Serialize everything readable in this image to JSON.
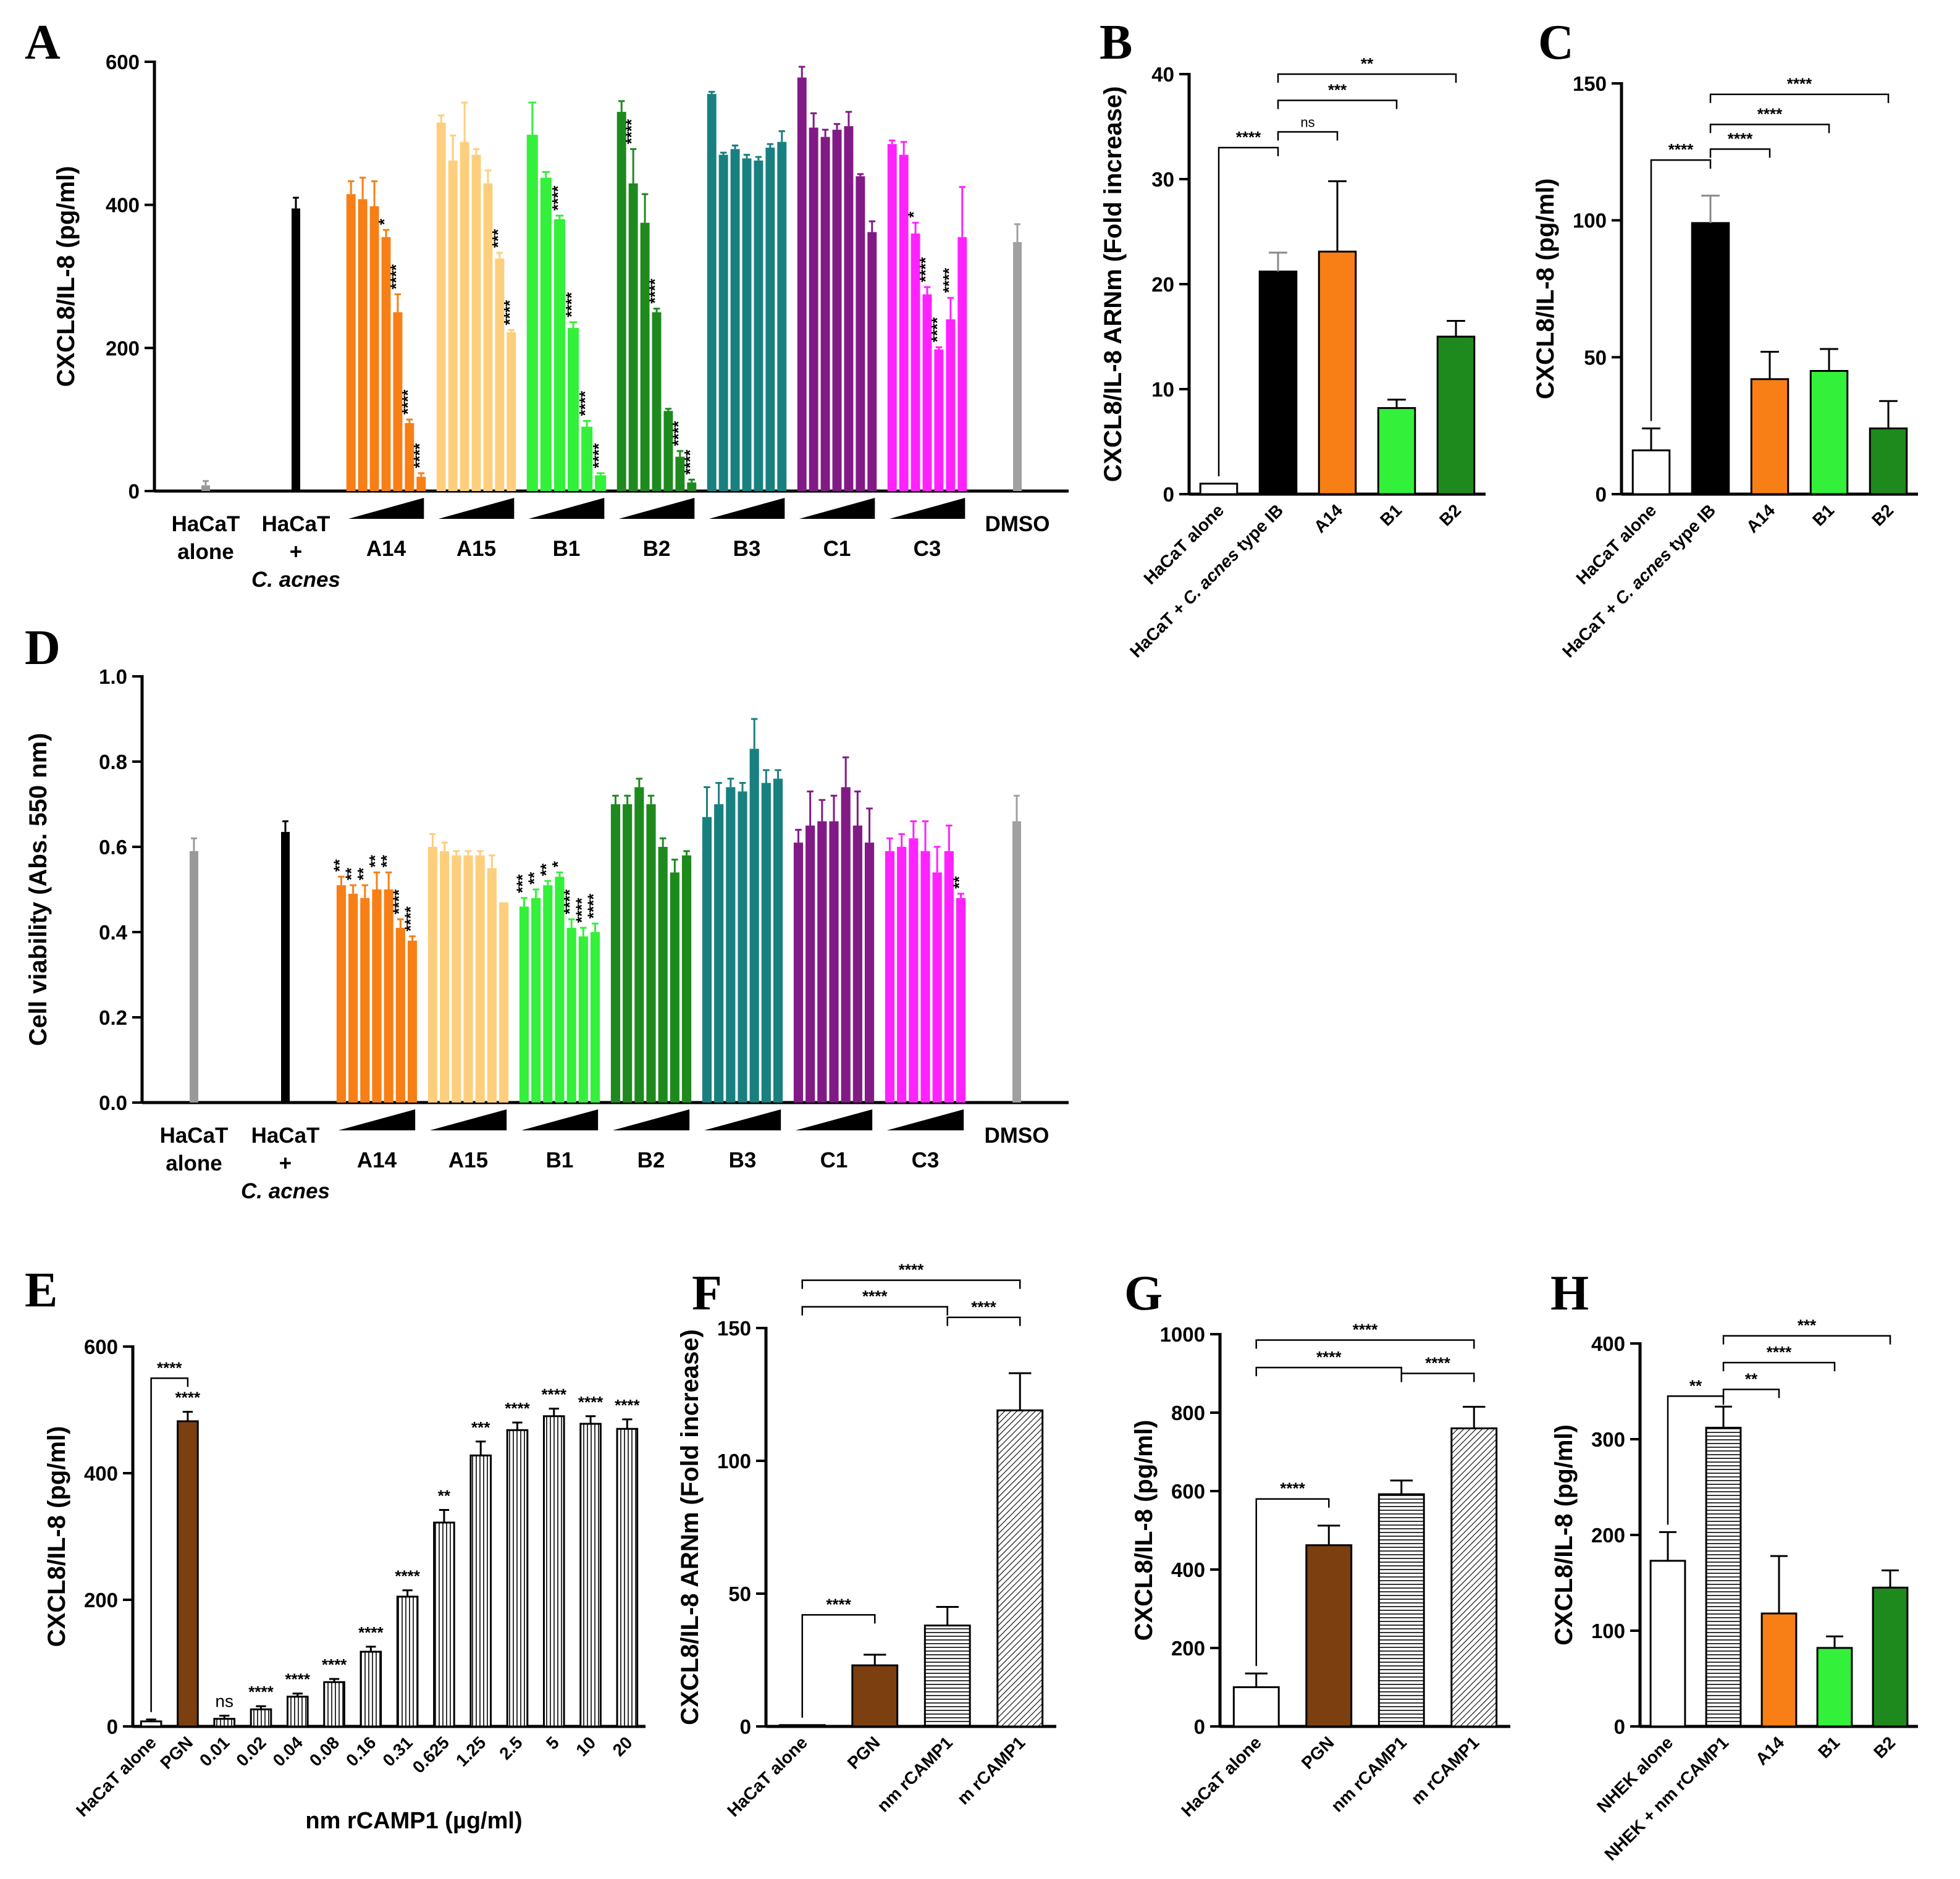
{
  "panels": [
    {
      "id": "A",
      "label": "A",
      "type": "bar",
      "box": [
        250,
        100,
        1730,
        800
      ],
      "ylabel": "CXCL8/IL-8 (pg/ml)",
      "ylim": [
        0,
        600
      ],
      "yticks": [
        0,
        200,
        400,
        600
      ],
      "groups": [
        {
          "label": "HaCaT\nalone",
          "color": "#999999",
          "values": [
            8
          ],
          "err": [
            6
          ]
        },
        {
          "label": "HaCaT\n+\nC. acnes",
          "italic_last": true,
          "color": "#000000",
          "values": [
            395
          ],
          "err": [
            15
          ]
        },
        {
          "label": "A14",
          "color": "#f77f16",
          "wedge": true,
          "values": [
            415,
            408,
            398,
            355,
            250,
            95,
            20
          ],
          "err": [
            18,
            30,
            35,
            10,
            25,
            5,
            5
          ],
          "stars": [
            "",
            "",
            "",
            "*",
            "****",
            "****",
            "****"
          ]
        },
        {
          "label": "A15",
          "color": "#fdcf7d",
          "wedge": true,
          "values": [
            515,
            462,
            488,
            470,
            430,
            325,
            222
          ],
          "err": [
            10,
            35,
            55,
            8,
            18,
            8,
            3
          ],
          "stars": [
            "",
            "",
            "",
            "",
            "",
            "***",
            "****"
          ]
        },
        {
          "label": "B1",
          "color": "#33f03a",
          "wedge": true,
          "values": [
            498,
            438,
            380,
            228,
            90,
            22
          ],
          "err": [
            45,
            8,
            5,
            8,
            8,
            3
          ],
          "stars": [
            "",
            "",
            "****",
            "****",
            "****",
            "****"
          ]
        },
        {
          "label": "B2",
          "color": "#1e8a1e",
          "wedge": true,
          "values": [
            530,
            430,
            375,
            250,
            112,
            48,
            12
          ],
          "err": [
            15,
            48,
            40,
            5,
            3,
            8,
            4
          ],
          "stars": [
            "",
            "****",
            "",
            "****",
            "",
            "****",
            "****"
          ]
        },
        {
          "label": "B3",
          "color": "#198080",
          "wedge": true,
          "values": [
            555,
            470,
            478,
            465,
            462,
            480,
            488
          ],
          "err": [
            3,
            3,
            5,
            5,
            5,
            5,
            15
          ]
        },
        {
          "label": "C1",
          "color": "#821a86",
          "wedge": true,
          "values": [
            578,
            508,
            495,
            505,
            510,
            440,
            362
          ],
          "err": [
            15,
            20,
            10,
            8,
            20,
            3,
            15
          ]
        },
        {
          "label": "C3",
          "color": "#ff22ff",
          "wedge": true,
          "values": [
            485,
            470,
            360,
            275,
            198,
            240,
            355
          ],
          "err": [
            5,
            18,
            15,
            10,
            3,
            30,
            70
          ],
          "stars": [
            "",
            "",
            "*",
            "****",
            "****",
            "****",
            ""
          ]
        },
        {
          "label": "DMSO",
          "color": "#a0a0a0",
          "values": [
            348
          ],
          "err": [
            25
          ]
        }
      ]
    },
    {
      "id": "B",
      "label": "B",
      "type": "bar",
      "box": [
        1925,
        120,
        2405,
        800
      ],
      "ylabel": "CXCL8/IL-8 ARNm (Fold increase)",
      "ylim": [
        0,
        40
      ],
      "yticks": [
        0,
        10,
        20,
        30,
        40
      ],
      "bars": [
        {
          "label": "HaCaT alone",
          "color": "#ffffff",
          "value": 1,
          "err": 0
        },
        {
          "label": "HaCaT + C. acnes type IB",
          "color": "#000000",
          "value": 21.2,
          "err": 1.8
        },
        {
          "label": "A14",
          "color": "#f77f16",
          "value": 23.1,
          "err": 6.7
        },
        {
          "label": "B1",
          "color": "#33f03a",
          "value": 8.2,
          "err": 0.8
        },
        {
          "label": "B2",
          "color": "#1e8a1e",
          "value": 15,
          "err": 1.5
        }
      ],
      "brackets": [
        {
          "from": 0,
          "to": 1,
          "text": "****",
          "y": 33
        },
        {
          "from": 1,
          "to": 2,
          "text": "ns",
          "y": 34.5
        },
        {
          "from": 1,
          "to": 3,
          "text": "***",
          "y": 37.5
        },
        {
          "from": 1,
          "to": 4,
          "text": "**",
          "y": 40
        }
      ]
    },
    {
      "id": "C",
      "label": "C",
      "type": "bar",
      "box": [
        2625,
        135,
        3105,
        800
      ],
      "ylabel": "CXCL8/IL-8 (pg/ml)",
      "ylim": [
        0,
        150
      ],
      "yticks": [
        0,
        50,
        100,
        150
      ],
      "bars": [
        {
          "label": "HaCaT alone",
          "color": "#ffffff",
          "value": 16,
          "err": 8
        },
        {
          "label": "HaCaT + C. acnes type IB",
          "color": "#000000",
          "value": 99,
          "err": 10
        },
        {
          "label": "A14",
          "color": "#f77f16",
          "value": 42,
          "err": 10
        },
        {
          "label": "B1",
          "color": "#33f03a",
          "value": 45,
          "err": 8
        },
        {
          "label": "B2",
          "color": "#1e8a1e",
          "value": 24,
          "err": 10
        }
      ],
      "brackets": [
        {
          "from": 0,
          "to": 1,
          "text": "****",
          "y": 122
        },
        {
          "from": 1,
          "to": 2,
          "text": "****",
          "y": 126
        },
        {
          "from": 1,
          "to": 3,
          "text": "****",
          "y": 135
        },
        {
          "from": 1,
          "to": 4,
          "text": "****",
          "y": 146
        }
      ]
    },
    {
      "id": "D",
      "label": "D",
      "type": "bar",
      "box": [
        230,
        1095,
        1730,
        1785
      ],
      "ylabel": "Cell viability (Abs. 550 nm)",
      "ylim": [
        0,
        1.0
      ],
      "yticks": [
        0.0,
        0.2,
        0.4,
        0.6,
        0.8,
        1.0
      ],
      "ytick_fmt": 1,
      "groups": [
        {
          "label": "HaCaT\nalone",
          "color": "#999999",
          "values": [
            0.59
          ],
          "err": [
            0.03
          ]
        },
        {
          "label": "HaCaT\n+\nC. acnes",
          "italic_last": true,
          "color": "#000000",
          "values": [
            0.635
          ],
          "err": [
            0.025
          ]
        },
        {
          "label": "A14",
          "color": "#f77f16",
          "wedge": true,
          "values": [
            0.51,
            0.49,
            0.48,
            0.5,
            0.5,
            0.41,
            0.38
          ],
          "err": [
            0.02,
            0.02,
            0.03,
            0.04,
            0.04,
            0.02,
            0.01
          ],
          "stars": [
            "**",
            "**",
            "**",
            "**",
            "**",
            "****",
            "****"
          ]
        },
        {
          "label": "A15",
          "color": "#fdcf7d",
          "wedge": true,
          "values": [
            0.6,
            0.59,
            0.58,
            0.58,
            0.58,
            0.55,
            0.47
          ],
          "err": [
            0.03,
            0.02,
            0.01,
            0.01,
            0.01,
            0.03,
            0.0
          ]
        },
        {
          "label": "B1",
          "color": "#33f03a",
          "wedge": true,
          "values": [
            0.46,
            0.48,
            0.51,
            0.53,
            0.41,
            0.39,
            0.4
          ],
          "err": [
            0.02,
            0.02,
            0.01,
            0.01,
            0.02,
            0.02,
            0.02
          ],
          "stars": [
            "***",
            "**",
            "**",
            "*",
            "****",
            "****",
            "****"
          ]
        },
        {
          "label": "B2",
          "color": "#1e8a1e",
          "wedge": true,
          "values": [
            0.7,
            0.7,
            0.74,
            0.7,
            0.6,
            0.54,
            0.58
          ],
          "err": [
            0.02,
            0.02,
            0.02,
            0.02,
            0.02,
            0.03,
            0.01
          ]
        },
        {
          "label": "B3",
          "color": "#198080",
          "wedge": true,
          "values": [
            0.67,
            0.7,
            0.74,
            0.73,
            0.83,
            0.75,
            0.76
          ],
          "err": [
            0.07,
            0.05,
            0.02,
            0.02,
            0.07,
            0.03,
            0.02
          ]
        },
        {
          "label": "C1",
          "color": "#821a86",
          "wedge": true,
          "values": [
            0.61,
            0.65,
            0.66,
            0.66,
            0.74,
            0.65,
            0.61
          ],
          "err": [
            0.03,
            0.08,
            0.05,
            0.06,
            0.07,
            0.08,
            0.08
          ]
        },
        {
          "label": "C3",
          "color": "#ff22ff",
          "wedge": true,
          "values": [
            0.59,
            0.6,
            0.62,
            0.59,
            0.54,
            0.59,
            0.48
          ],
          "err": [
            0.03,
            0.03,
            0.04,
            0.07,
            0.06,
            0.06,
            0.01
          ],
          "stars": [
            "",
            "",
            "",
            "",
            "",
            "",
            "**"
          ]
        },
        {
          "label": "DMSO",
          "color": "#a0a0a0",
          "values": [
            0.66
          ],
          "err": [
            0.06
          ]
        }
      ]
    },
    {
      "id": "E",
      "label": "E",
      "type": "bar",
      "box": [
        215,
        2150,
        1065,
        2810
      ],
      "ylabel": "CXCL8/IL-8 (pg/ml)",
      "ylim": [
        0,
        600
      ],
      "yticks": [
        0,
        200,
        400,
        600
      ],
      "xlabel": "nm rCAMP1 (µg/ml)",
      "bars": [
        {
          "label": "HaCaT alone",
          "color": "#ffffff",
          "value": 8,
          "err": 3
        },
        {
          "label": "PGN",
          "color": "#7b3f10",
          "value": 482,
          "err": 15,
          "star": "****"
        },
        {
          "label": "0.01",
          "color": "#ffffff",
          "pattern": "vert",
          "value": 12,
          "err": 5,
          "star": "ns"
        },
        {
          "label": "0.02",
          "color": "#ffffff",
          "pattern": "vert",
          "value": 27,
          "err": 5,
          "star": "****"
        },
        {
          "label": "0.04",
          "color": "#ffffff",
          "pattern": "vert",
          "value": 47,
          "err": 5,
          "star": "****"
        },
        {
          "label": "0.08",
          "color": "#ffffff",
          "pattern": "vert",
          "value": 70,
          "err": 5,
          "star": "****"
        },
        {
          "label": "0.16",
          "color": "#ffffff",
          "pattern": "vert",
          "value": 118,
          "err": 8,
          "star": "****"
        },
        {
          "label": "0.31",
          "color": "#ffffff",
          "pattern": "vert",
          "value": 205,
          "err": 10,
          "star": "****"
        },
        {
          "label": "0.625",
          "color": "#ffffff",
          "pattern": "vert",
          "value": 322,
          "err": 20,
          "star": "**"
        },
        {
          "label": "1.25",
          "color": "#ffffff",
          "pattern": "vert",
          "value": 428,
          "err": 22,
          "star": "***"
        },
        {
          "label": "2.5",
          "color": "#ffffff",
          "pattern": "vert",
          "value": 468,
          "err": 12,
          "star": "****"
        },
        {
          "label": "5",
          "color": "#ffffff",
          "pattern": "vert",
          "value": 490,
          "err": 12,
          "star": "****"
        },
        {
          "label": "10",
          "color": "#ffffff",
          "pattern": "vert",
          "value": 478,
          "err": 12,
          "star": "****"
        },
        {
          "label": "20",
          "color": "#ffffff",
          "pattern": "vert",
          "value": 470,
          "err": 15,
          "star": "****"
        }
      ],
      "brackets": [
        {
          "from": 0,
          "to": 1,
          "text": "****",
          "y": 550
        }
      ]
    },
    {
      "id": "F",
      "label": "F",
      "type": "bar",
      "box": [
        1240,
        2150,
        1710,
        2810
      ],
      "ylabel": "CXCL8/IL-8 ARNm (Fold increase)",
      "ylim": [
        0,
        150
      ],
      "yticks": [
        0,
        50,
        100,
        150
      ],
      "bars": [
        {
          "label": "HaCaT alone",
          "color": "#ffffff",
          "value": 0.5,
          "err": 0
        },
        {
          "label": "PGN",
          "color": "#7b3f10",
          "value": 23,
          "err": 4
        },
        {
          "label": "nm rCAMP1",
          "color": "#ffffff",
          "pattern": "horiz",
          "value": 38,
          "err": 7
        },
        {
          "label": "m rCAMP1",
          "color": "#ffffff",
          "pattern": "diag",
          "value": 119,
          "err": 14
        }
      ],
      "brackets": [
        {
          "from": 0,
          "to": 1,
          "text": "****",
          "y": 42
        },
        {
          "from": 2,
          "to": 3,
          "text": "****",
          "y": 154
        },
        {
          "from": 0,
          "to": 2,
          "text": "****",
          "y": 158
        },
        {
          "from": 0,
          "to": 3,
          "text": "****",
          "y": 168
        }
      ]
    },
    {
      "id": "G",
      "label": "G",
      "type": "bar",
      "box": [
        1975,
        2160,
        2445,
        2810
      ],
      "ylabel": "CXCL8/IL-8 (pg/ml)",
      "ylim": [
        0,
        1000
      ],
      "yticks": [
        0,
        200,
        400,
        600,
        800,
        1000
      ],
      "bars": [
        {
          "label": "HaCaT alone",
          "color": "#ffffff",
          "value": 100,
          "err": 35
        },
        {
          "label": "PGN",
          "color": "#7b3f10",
          "value": 462,
          "err": 50
        },
        {
          "label": "nm rCAMP1",
          "color": "#ffffff",
          "pattern": "horiz",
          "value": 592,
          "err": 35
        },
        {
          "label": "m rCAMP1",
          "color": "#ffffff",
          "pattern": "diag",
          "value": 760,
          "err": 55
        }
      ],
      "brackets": [
        {
          "from": 0,
          "to": 1,
          "text": "****",
          "y": 580
        },
        {
          "from": 2,
          "to": 3,
          "text": "****",
          "y": 900
        },
        {
          "from": 0,
          "to": 2,
          "text": "****",
          "y": 915
        },
        {
          "from": 0,
          "to": 3,
          "text": "****",
          "y": 985
        }
      ]
    },
    {
      "id": "H",
      "label": "H",
      "type": "bar",
      "box": [
        2655,
        2175,
        3105,
        2810
      ],
      "ylabel": "CXCL8/IL-8 (pg/ml)",
      "ylim": [
        0,
        400
      ],
      "yticks": [
        0,
        100,
        200,
        300,
        400
      ],
      "bars": [
        {
          "label": "NHEK alone",
          "color": "#ffffff",
          "value": 173,
          "err": 30
        },
        {
          "label": "NHEK + nm rCAMP1",
          "color": "#ffffff",
          "pattern": "horiz",
          "value": 312,
          "err": 22
        },
        {
          "label": "A14",
          "color": "#f77f16",
          "value": 118,
          "err": 60
        },
        {
          "label": "B1",
          "color": "#33f03a",
          "value": 82,
          "err": 12
        },
        {
          "label": "B2",
          "color": "#1e8a1e",
          "value": 145,
          "err": 18
        }
      ],
      "brackets": [
        {
          "from": 0,
          "to": 1,
          "text": "**",
          "y": 345
        },
        {
          "from": 1,
          "to": 2,
          "text": "**",
          "y": 352
        },
        {
          "from": 1,
          "to": 3,
          "text": "****",
          "y": 380
        },
        {
          "from": 1,
          "to": 4,
          "text": "***",
          "y": 408
        }
      ]
    }
  ]
}
